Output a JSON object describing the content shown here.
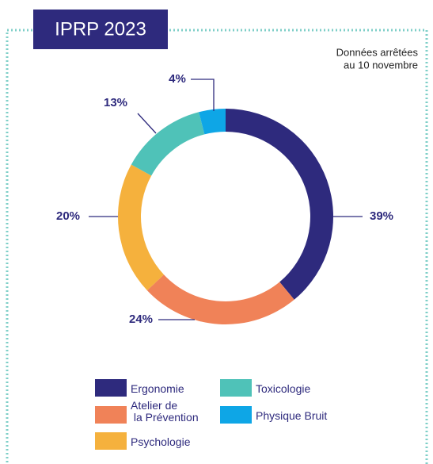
{
  "chart_data": {
    "type": "donut",
    "title": "IPRP 2023",
    "subtitle": [
      "Données arrêtées",
      "au 10 novembre"
    ],
    "categories": [
      "Ergonomie",
      "Atelier de la Prévention",
      "Psychologie",
      "Toxicologie",
      "Physique Bruit"
    ],
    "values": [
      39,
      24,
      20,
      13,
      4
    ],
    "value_labels": [
      "39%",
      "24%",
      "20%",
      "13%",
      "4%"
    ],
    "colors": [
      "#2e2a7d",
      "#f08258",
      "#f5b13d",
      "#4fc2b8",
      "#0ea6e6"
    ]
  }
}
